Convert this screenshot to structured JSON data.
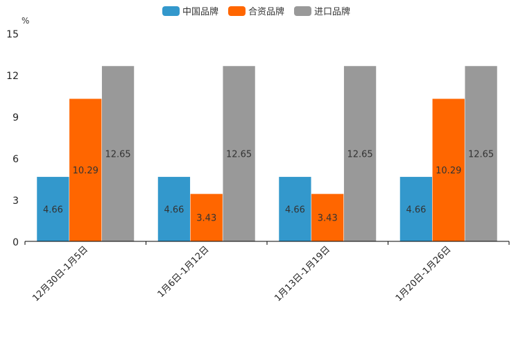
{
  "chart_data": {
    "type": "bar",
    "title": "",
    "ylabel": "%",
    "xlabel": "",
    "ylim": [
      0,
      15
    ],
    "yticks": [
      0,
      3,
      6,
      9,
      12,
      15
    ],
    "categories": [
      "12月30日-1月5日",
      "1月6日-1月12日",
      "1月13日-1月19日",
      "1月20日-1月26日"
    ],
    "series": [
      {
        "name": "中国品牌",
        "color": "#3398cc",
        "values": [
          4.66,
          4.66,
          4.66,
          4.66
        ]
      },
      {
        "name": "合资品牌",
        "color": "#ff6600",
        "values": [
          10.29,
          3.43,
          3.43,
          10.29
        ]
      },
      {
        "name": "进口品牌",
        "color": "#999999",
        "values": [
          12.65,
          12.65,
          12.65,
          12.65
        ]
      }
    ],
    "legend_position": "top-center",
    "grid": false,
    "data_labels": true
  }
}
